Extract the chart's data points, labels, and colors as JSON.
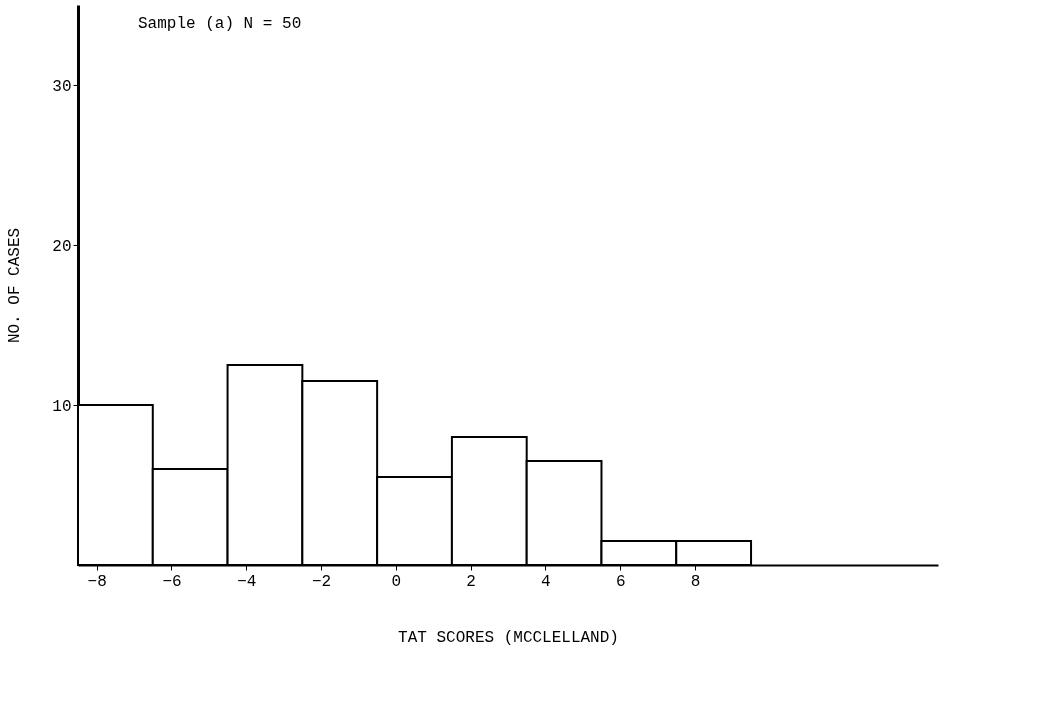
{
  "chart_data": {
    "type": "histogram",
    "bins": [
      -8.5,
      -6.5,
      -4.5,
      -2.5,
      -0.5,
      1.5,
      3.5,
      5.5,
      7.5,
      9.5
    ],
    "values": [
      10,
      6,
      12.5,
      11.5,
      5.5,
      8,
      6.5,
      1.5,
      1.5
    ],
    "color": "#ffffff",
    "xlim": [
      -8.5,
      14.5
    ],
    "xticks": [
      -8,
      -6,
      -4,
      -2,
      0,
      2,
      4,
      6,
      8
    ],
    "ylim": [
      0,
      35
    ],
    "yticks": [
      10,
      20,
      30
    ],
    "xlabel": "TAT SCORES (MCCLELLAND)",
    "ylabel": "NO. OF CASES",
    "annotations": [
      "Sample (a)  N = 50"
    ],
    "grid": false
  }
}
